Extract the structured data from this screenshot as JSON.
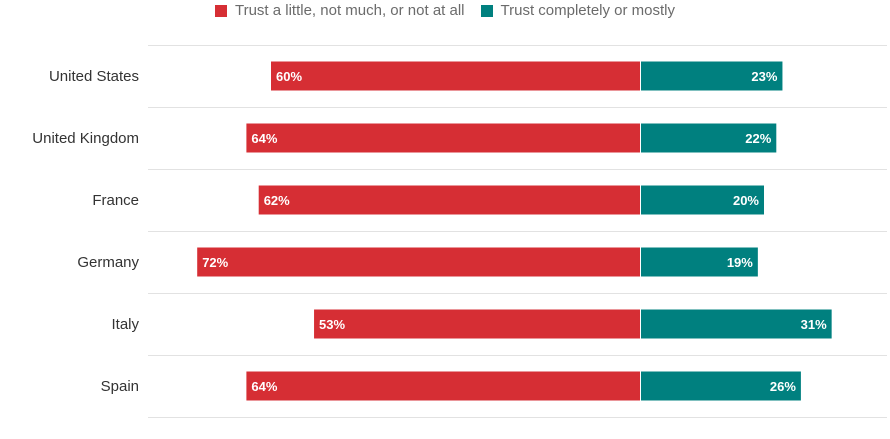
{
  "colors": {
    "distrust": "#d62e34",
    "trust": "#00807f",
    "grid": "#e2e2e2"
  },
  "legend": [
    {
      "label": "Trust a little, not much, or not at all",
      "color": "#d62e34"
    },
    {
      "label": "Trust completely or mostly",
      "color": "#00807f"
    }
  ],
  "chart_data": {
    "type": "bar",
    "orientation": "horizontal-diverging",
    "categories": [
      "United States",
      "United Kingdom",
      "France",
      "Germany",
      "Italy",
      "Spain"
    ],
    "series": [
      {
        "name": "Trust a little, not much, or not at all",
        "values": [
          60,
          64,
          62,
          72,
          53,
          64
        ]
      },
      {
        "name": "Trust completely or mostly",
        "values": [
          23,
          22,
          20,
          19,
          31,
          26
        ]
      }
    ],
    "value_labels": [
      [
        "60%",
        "64%",
        "62%",
        "72%",
        "53%",
        "64%"
      ],
      [
        "23%",
        "22%",
        "20%",
        "19%",
        "31%",
        "26%"
      ]
    ],
    "legend_position": "top-center",
    "grid": true
  }
}
